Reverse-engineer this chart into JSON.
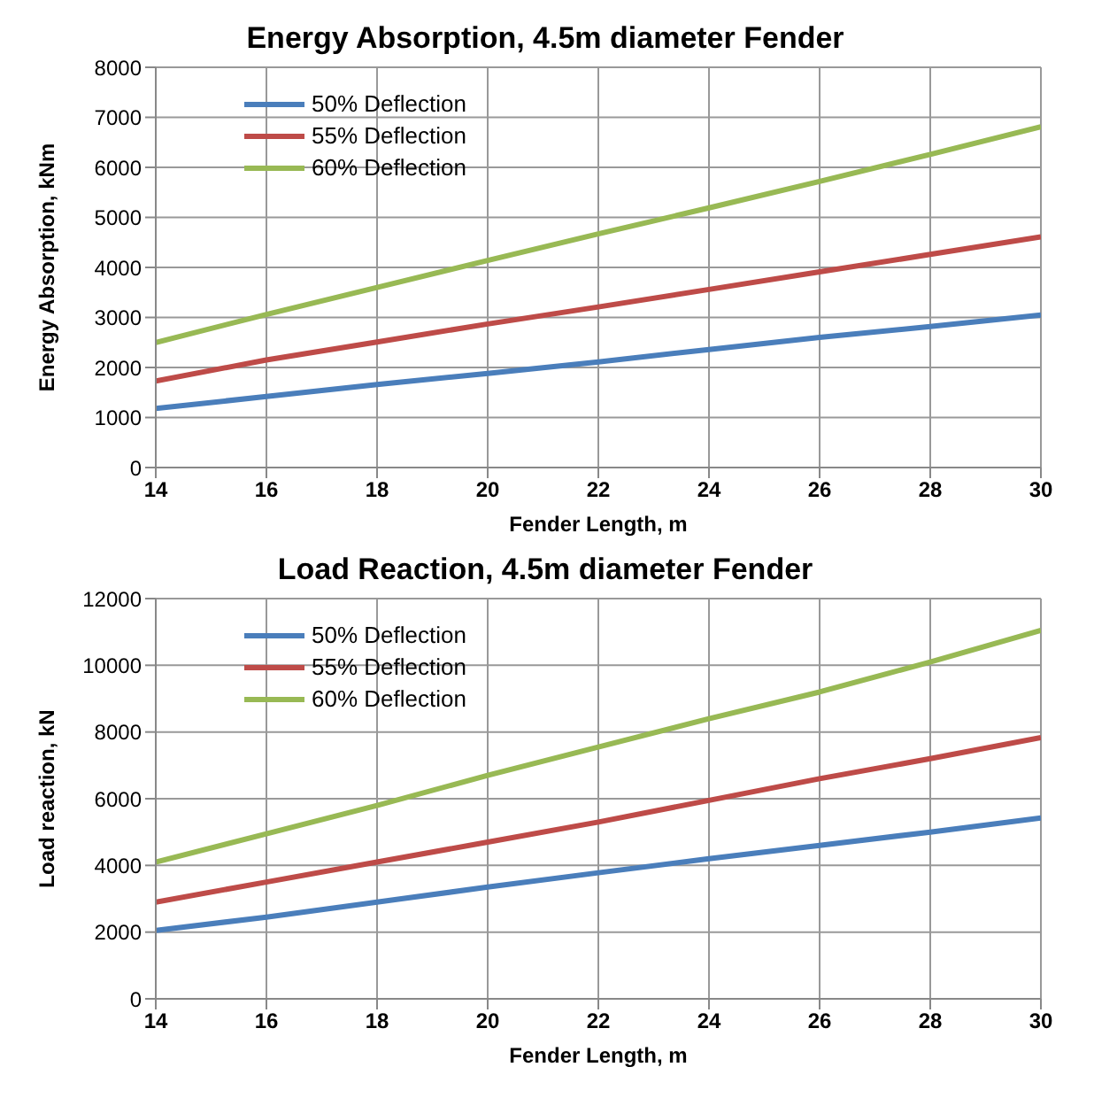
{
  "chart_data": [
    {
      "type": "line",
      "title": "Energy Absorption, 4.5m diameter Fender",
      "xlabel": "Fender Length, m",
      "ylabel": "Energy Absorption, kNm",
      "x": [
        14,
        16,
        18,
        20,
        22,
        24,
        26,
        28,
        30
      ],
      "series": [
        {
          "name": "50% Deflection",
          "color": "#4a7ebb",
          "values": [
            1180,
            1420,
            1660,
            1880,
            2110,
            2360,
            2600,
            2820,
            3050
          ]
        },
        {
          "name": "55% Deflection",
          "color": "#be4b48",
          "values": [
            1730,
            2150,
            2510,
            2870,
            3210,
            3560,
            3910,
            4260,
            4610
          ]
        },
        {
          "name": "60% Deflection",
          "color": "#98b954",
          "values": [
            2500,
            3060,
            3600,
            4140,
            4670,
            5190,
            5720,
            6260,
            6810
          ]
        }
      ],
      "xlim": [
        14,
        30
      ],
      "xticks": [
        14,
        16,
        18,
        20,
        22,
        24,
        26,
        28,
        30
      ],
      "ylim": [
        0,
        8000
      ],
      "yticks": [
        0,
        1000,
        2000,
        3000,
        4000,
        5000,
        6000,
        7000,
        8000
      ],
      "grid": true,
      "legend": "top left"
    },
    {
      "type": "line",
      "title": "Load Reaction, 4.5m diameter Fender",
      "xlabel": "Fender Length, m",
      "ylabel": "Load reaction, kN",
      "x": [
        14,
        16,
        18,
        20,
        22,
        24,
        26,
        28,
        30
      ],
      "series": [
        {
          "name": "50% Deflection",
          "color": "#4a7ebb",
          "values": [
            2050,
            2450,
            2900,
            3350,
            3780,
            4200,
            4600,
            5000,
            5420
          ]
        },
        {
          "name": "55% Deflection",
          "color": "#be4b48",
          "values": [
            2900,
            3500,
            4100,
            4700,
            5300,
            5950,
            6600,
            7200,
            7830
          ]
        },
        {
          "name": "60% Deflection",
          "color": "#98b954",
          "values": [
            4100,
            4950,
            5800,
            6700,
            7550,
            8400,
            9200,
            10100,
            11050
          ]
        }
      ],
      "xlim": [
        14,
        30
      ],
      "xticks": [
        14,
        16,
        18,
        20,
        22,
        24,
        26,
        28,
        30
      ],
      "ylim": [
        0,
        12000
      ],
      "yticks": [
        0,
        2000,
        4000,
        6000,
        8000,
        10000,
        12000
      ],
      "grid": true,
      "legend": "top left"
    }
  ]
}
